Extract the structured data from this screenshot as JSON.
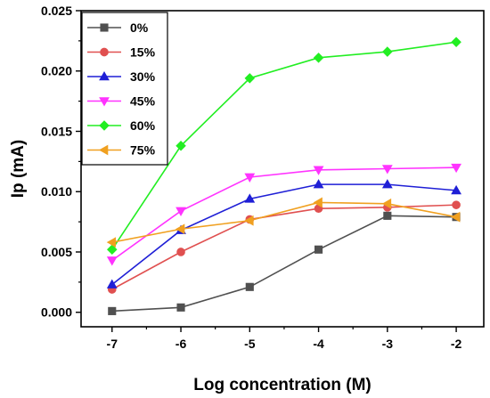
{
  "chart_data": {
    "type": "line",
    "title": "",
    "xlabel": "Log concentration (M)",
    "ylabel": "Ip (mA)",
    "xlim": [
      -7.45,
      -1.6
    ],
    "ylim": [
      -0.0012,
      0.025
    ],
    "x": [
      -7,
      -6,
      -5,
      -4,
      -3,
      -2
    ],
    "x_tick_labels": [
      "-7",
      "-6",
      "-5",
      "-4",
      "-3",
      "-2"
    ],
    "y_ticks": [
      0.0,
      0.005,
      0.01,
      0.015,
      0.02,
      0.025
    ],
    "y_tick_labels": [
      "0.000",
      "0.005",
      "0.010",
      "0.015",
      "0.020",
      "0.025"
    ],
    "grid": false,
    "legend_position": "top-left",
    "series": [
      {
        "name": "0%",
        "color": "#505050",
        "marker": "square",
        "values": [
          0.0001,
          0.0004,
          0.0021,
          0.0052,
          0.008,
          0.0079
        ]
      },
      {
        "name": "15%",
        "color": "#e05050",
        "marker": "circle",
        "values": [
          0.0019,
          0.005,
          0.0077,
          0.0086,
          0.0087,
          0.0089
        ]
      },
      {
        "name": "30%",
        "color": "#1f1fd6",
        "marker": "triangle-up",
        "values": [
          0.0023,
          0.0068,
          0.0094,
          0.0106,
          0.0106,
          0.0101
        ]
      },
      {
        "name": "45%",
        "color": "#ff33ff",
        "marker": "triangle-down",
        "values": [
          0.0043,
          0.0084,
          0.0112,
          0.0118,
          0.0119,
          0.012
        ]
      },
      {
        "name": "60%",
        "color": "#22ee22",
        "marker": "diamond",
        "values": [
          0.0052,
          0.0138,
          0.0194,
          0.0211,
          0.0216,
          0.0224
        ]
      },
      {
        "name": "75%",
        "color": "#f0a020",
        "marker": "triangle-left",
        "values": [
          0.0058,
          0.0069,
          0.0076,
          0.0091,
          0.009,
          0.0079
        ]
      }
    ]
  }
}
